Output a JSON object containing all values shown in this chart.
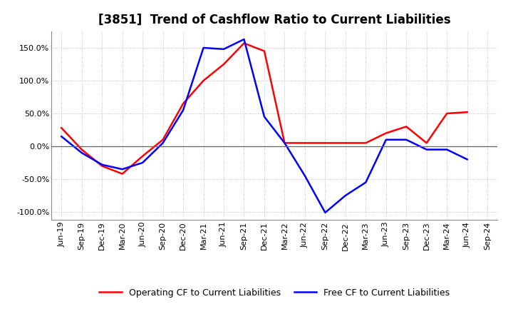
{
  "title": "[3851]  Trend of Cashflow Ratio to Current Liabilities",
  "x_labels": [
    "Jun-19",
    "Sep-19",
    "Dec-19",
    "Mar-20",
    "Jun-20",
    "Sep-20",
    "Dec-20",
    "Mar-21",
    "Jun-21",
    "Sep-21",
    "Dec-21",
    "Mar-22",
    "Jun-22",
    "Sep-22",
    "Dec-22",
    "Mar-23",
    "Jun-23",
    "Sep-23",
    "Dec-23",
    "Mar-24",
    "Jun-24",
    "Sep-24"
  ],
  "operating_cf": [
    28,
    -5,
    -30,
    -42,
    -15,
    10,
    65,
    100,
    125,
    157,
    145,
    5,
    5,
    5,
    5,
    5,
    20,
    30,
    5,
    50,
    52,
    null
  ],
  "free_cf": [
    15,
    -10,
    -28,
    -35,
    -25,
    5,
    55,
    150,
    148,
    163,
    45,
    5,
    -45,
    -101,
    -75,
    -55,
    10,
    10,
    -5,
    -5,
    -20,
    null
  ],
  "operating_color": "#ff0000",
  "free_color": "#0000ff",
  "ylim": [
    -112,
    175
  ],
  "yticks": [
    -100,
    -50,
    0,
    50,
    100,
    150
  ],
  "background_color": "#ffffff",
  "grid_color": "#aaaaaa",
  "line_width": 1.8,
  "title_fontsize": 12,
  "tick_fontsize": 8,
  "legend_fontsize": 9
}
